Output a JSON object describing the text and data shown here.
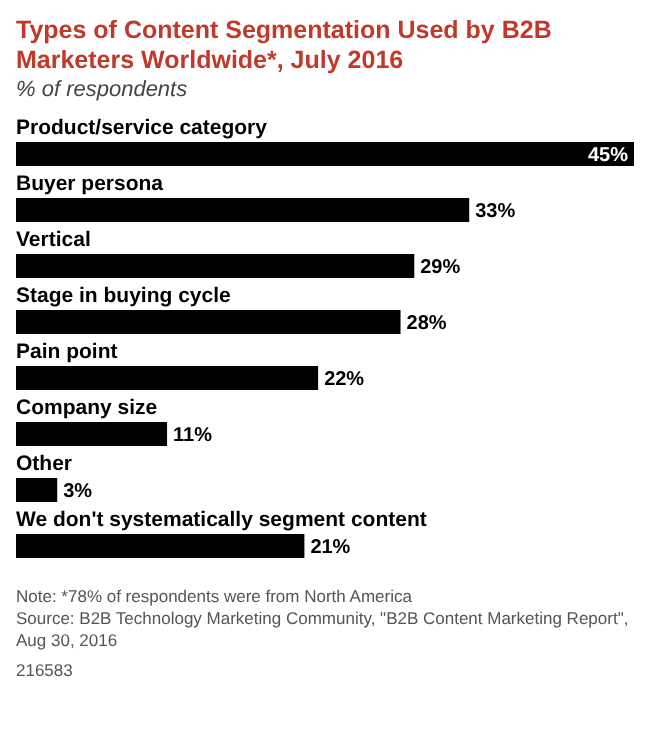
{
  "chart_data": {
    "type": "bar",
    "orientation": "horizontal",
    "title": "Types of Content Segmentation Used by B2B Marketers Worldwide*, July 2016",
    "subtitle": "% of respondents",
    "categories": [
      "Product/service category",
      "Buyer persona",
      "Vertical",
      "Stage in buying cycle",
      "Pain point",
      "Company size",
      "Other",
      "We don't systematically segment content"
    ],
    "values": [
      45,
      33,
      29,
      28,
      22,
      11,
      3,
      21
    ],
    "value_labels": [
      "45%",
      "33%",
      "29%",
      "28%",
      "22%",
      "11%",
      "3%",
      "21%"
    ],
    "color": "#000000",
    "annotations": [
      "Note: *78% of respondents were from North America",
      "Source: B2B Technology Marketing Community, \"B2B Content Marketing Report\", Aug 30, 2016",
      "216583"
    ]
  }
}
